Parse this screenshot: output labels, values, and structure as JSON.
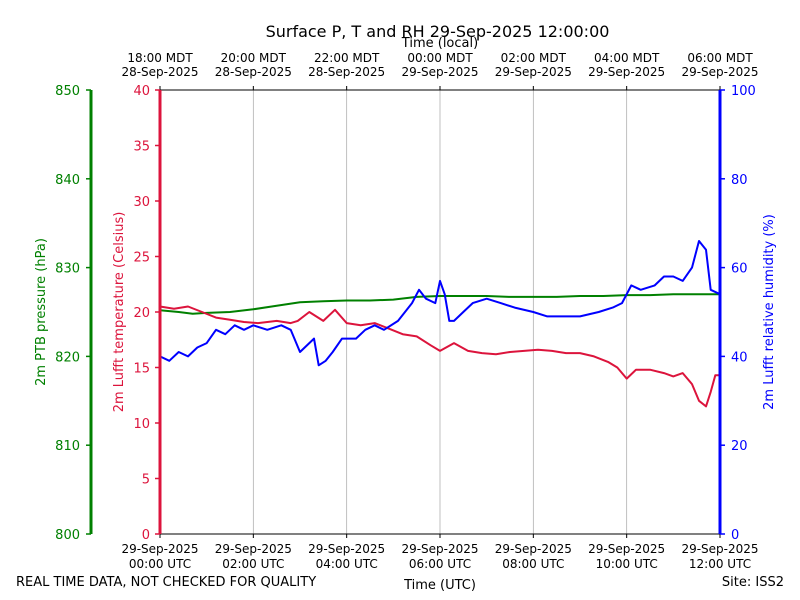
{
  "title": "Surface P, T and RH 29-Sep-2025 12:00:00",
  "footer": {
    "quality_note": "REAL TIME DATA, NOT CHECKED FOR QUALITY",
    "site": "Site: ISS2"
  },
  "chart_data": {
    "type": "line",
    "x_unit": "hours since 29-Sep-2025 00:00 UTC",
    "xlim": [
      0,
      12
    ],
    "xlabel_bottom": "Time (UTC)",
    "xlabel_top": "Time (local)",
    "bottom_ticks": [
      {
        "x": 0,
        "line1": "29-Sep-2025",
        "line2": "00:00 UTC"
      },
      {
        "x": 2,
        "line1": "29-Sep-2025",
        "line2": "02:00 UTC"
      },
      {
        "x": 4,
        "line1": "29-Sep-2025",
        "line2": "04:00 UTC"
      },
      {
        "x": 6,
        "line1": "29-Sep-2025",
        "line2": "06:00 UTC"
      },
      {
        "x": 8,
        "line1": "29-Sep-2025",
        "line2": "08:00 UTC"
      },
      {
        "x": 10,
        "line1": "29-Sep-2025",
        "line2": "10:00 UTC"
      },
      {
        "x": 12,
        "line1": "29-Sep-2025",
        "line2": "12:00 UTC"
      }
    ],
    "top_ticks": [
      {
        "x": 0,
        "line1": "18:00 MDT",
        "line2": "28-Sep-2025"
      },
      {
        "x": 2,
        "line1": "20:00 MDT",
        "line2": "28-Sep-2025"
      },
      {
        "x": 4,
        "line1": "22:00 MDT",
        "line2": "28-Sep-2025"
      },
      {
        "x": 6,
        "line1": "00:00 MDT",
        "line2": "29-Sep-2025"
      },
      {
        "x": 8,
        "line1": "02:00 MDT",
        "line2": "29-Sep-2025"
      },
      {
        "x": 10,
        "line1": "04:00 MDT",
        "line2": "29-Sep-2025"
      },
      {
        "x": 12,
        "line1": "06:00 MDT",
        "line2": "29-Sep-2025"
      }
    ],
    "grid": "vertical",
    "axes": [
      {
        "id": "pressure",
        "label": "2m PTB pressure (hPa)",
        "ylim": [
          800,
          850
        ],
        "ticks": [
          800,
          810,
          820,
          830,
          840,
          850
        ],
        "color": "#008000",
        "side": "far-left"
      },
      {
        "id": "temperature",
        "label": "2m Lufft temperature (Celsius)",
        "ylim": [
          0,
          40
        ],
        "ticks": [
          0,
          5,
          10,
          15,
          20,
          25,
          30,
          35,
          40
        ],
        "color": "#dc143c",
        "side": "left"
      },
      {
        "id": "humidity",
        "label": "2m Lufft relative humidity (%)",
        "ylim": [
          0,
          100
        ],
        "ticks": [
          0,
          20,
          40,
          60,
          80,
          100
        ],
        "color": "#0000ff",
        "side": "right"
      }
    ],
    "series": [
      {
        "name": "2m PTB pressure",
        "axis": "pressure",
        "color": "#008000",
        "x": [
          0,
          0.4,
          0.7,
          1,
          1.5,
          2,
          2.5,
          3,
          3.5,
          4,
          4.5,
          5,
          5.5,
          6,
          6.5,
          7,
          7.5,
          8,
          8.5,
          9,
          9.5,
          10,
          10.5,
          11,
          11.5,
          12
        ],
        "values": [
          825.2,
          825.0,
          824.8,
          824.9,
          825.0,
          825.3,
          825.7,
          826.1,
          826.2,
          826.3,
          826.3,
          826.4,
          826.7,
          826.8,
          826.8,
          826.8,
          826.7,
          826.7,
          826.7,
          826.8,
          826.8,
          826.9,
          826.9,
          827.0,
          827.0,
          827.0
        ]
      },
      {
        "name": "2m Lufft temperature",
        "axis": "temperature",
        "color": "#dc143c",
        "x": [
          0,
          0.3,
          0.6,
          0.9,
          1.2,
          1.5,
          1.8,
          2.1,
          2.5,
          2.8,
          2.95,
          3.2,
          3.5,
          3.75,
          4.0,
          4.3,
          4.6,
          4.9,
          5.2,
          5.5,
          5.8,
          6.0,
          6.3,
          6.6,
          6.9,
          7.2,
          7.5,
          7.8,
          8.1,
          8.4,
          8.7,
          9.0,
          9.3,
          9.6,
          9.8,
          10.0,
          10.2,
          10.5,
          10.8,
          11.0,
          11.2,
          11.4,
          11.55,
          11.7,
          11.8,
          11.9,
          12.0
        ],
        "values": [
          20.5,
          20.3,
          20.5,
          20.0,
          19.5,
          19.3,
          19.1,
          19.0,
          19.2,
          19.0,
          19.2,
          20.0,
          19.2,
          20.2,
          19.0,
          18.8,
          19.0,
          18.5,
          18.0,
          17.8,
          17.0,
          16.5,
          17.2,
          16.5,
          16.3,
          16.2,
          16.4,
          16.5,
          16.6,
          16.5,
          16.3,
          16.3,
          16.0,
          15.5,
          15.0,
          14.0,
          14.8,
          14.8,
          14.5,
          14.2,
          14.5,
          13.5,
          12.0,
          11.5,
          12.8,
          14.3,
          14.3
        ]
      },
      {
        "name": "2m Lufft relative humidity",
        "axis": "humidity",
        "color": "#0000ff",
        "x": [
          0,
          0.2,
          0.4,
          0.6,
          0.8,
          1.0,
          1.2,
          1.4,
          1.6,
          1.8,
          2.0,
          2.3,
          2.6,
          2.8,
          3.0,
          3.3,
          3.4,
          3.55,
          3.7,
          3.9,
          4.2,
          4.4,
          4.6,
          4.8,
          5.1,
          5.4,
          5.55,
          5.7,
          5.9,
          6.0,
          6.1,
          6.2,
          6.3,
          6.5,
          6.7,
          7.0,
          7.3,
          7.6,
          8.0,
          8.3,
          8.6,
          9.0,
          9.4,
          9.7,
          9.9,
          10.1,
          10.3,
          10.6,
          10.8,
          11.0,
          11.2,
          11.4,
          11.55,
          11.7,
          11.8,
          12.0
        ],
        "values": [
          40,
          39,
          41,
          40,
          42,
          43,
          46,
          45,
          47,
          46,
          47,
          46,
          47,
          46,
          41,
          44,
          38,
          39,
          41,
          44,
          44,
          46,
          47,
          46,
          48,
          52,
          55,
          53,
          52,
          57,
          54,
          48,
          48,
          50,
          52,
          53,
          52,
          51,
          50,
          49,
          49,
          49,
          50,
          51,
          52,
          56,
          55,
          56,
          58,
          58,
          57,
          60,
          66,
          64,
          55,
          54
        ]
      }
    ]
  }
}
